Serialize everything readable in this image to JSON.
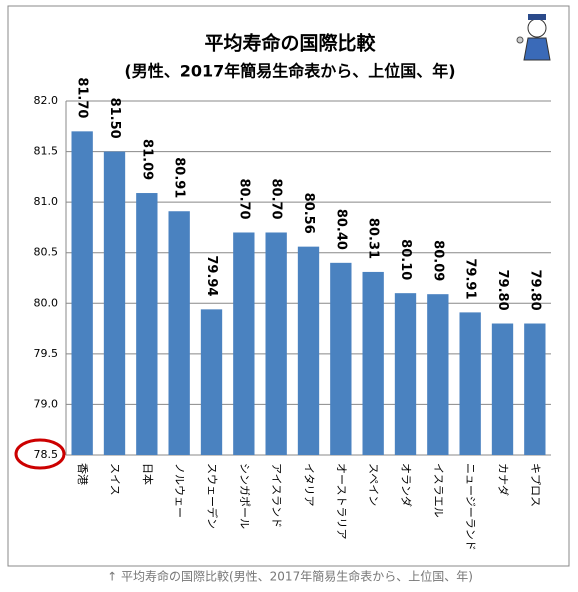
{
  "chart_data": {
    "type": "bar",
    "title": "平均寿命の国際比較",
    "subtitle": "(男性、2017年簡易生命表から、上位国、年)",
    "caption": "↑ 平均寿命の国際比較(男性、2017年簡易生命表から、上位国、年)",
    "categories": [
      "香港",
      "スイス",
      "日本",
      "ノルウェー",
      "スウェーデン",
      "シンガポール",
      "アイスランド",
      "イタリア",
      "オーストラリア",
      "スペイン",
      "オランダ",
      "イスラエル",
      "ニュージーランド",
      "カナダ",
      "キプロス"
    ],
    "values": [
      81.7,
      81.5,
      81.09,
      80.91,
      79.94,
      80.7,
      80.7,
      80.56,
      80.4,
      80.31,
      80.1,
      80.09,
      79.91,
      79.8,
      79.8
    ],
    "value_labels": [
      "81.70",
      "81.50",
      "81.09",
      "80.91",
      "79.94",
      "80.70",
      "80.70",
      "80.56",
      "80.40",
      "80.31",
      "80.10",
      "80.09",
      "79.91",
      "79.80",
      "79.80"
    ],
    "color": "#4a82c0",
    "ylim": [
      78.5,
      82
    ],
    "yticks": [
      78.5,
      {
        "value": 79,
        "label": "79.0"
      },
      79.5,
      {
        "value": 80,
        "label": "80.0"
      },
      80.5,
      {
        "value": 81,
        "label": "81.0"
      },
      81.5,
      {
        "value": 82,
        "label": "82.0"
      }
    ],
    "grid": true
  }
}
